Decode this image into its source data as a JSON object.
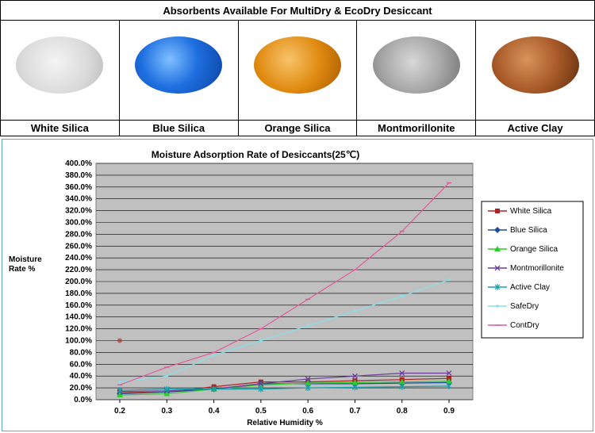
{
  "header": {
    "title": "Absorbents Available For MultiDry & EcoDry Desiccant"
  },
  "absorbents": [
    {
      "name": "White Silica",
      "texture": "white-silica-beads"
    },
    {
      "name": "Blue Silica",
      "texture": "blue-silica-beads"
    },
    {
      "name": "Orange Silica",
      "texture": "orange-silica-beads"
    },
    {
      "name": "Montmorillonite",
      "texture": "montmorillonite-granules"
    },
    {
      "name": "Active Clay",
      "texture": "active-clay-balls"
    }
  ],
  "chart_data": {
    "type": "line",
    "title": "Moisture Adsorption Rate of Desiccants(25℃)",
    "xlabel": "Relative Humidity %",
    "ylabel_lines": [
      "Moisture",
      "Rate %"
    ],
    "x": [
      0.2,
      0.3,
      0.4,
      0.5,
      0.6,
      0.7,
      0.8,
      0.9
    ],
    "x_tick_labels": [
      "0.2",
      "0.3",
      "0.4",
      "0.5",
      "0.6",
      "0.7",
      "0.8",
      "0.9"
    ],
    "ylim": [
      0,
      400
    ],
    "y_ticks": [
      0,
      20,
      40,
      60,
      80,
      100,
      120,
      140,
      160,
      180,
      200,
      220,
      240,
      260,
      280,
      300,
      320,
      340,
      360,
      380,
      400
    ],
    "y_tick_labels": [
      "0.0%",
      "20.0%",
      "40.0%",
      "60.0%",
      "80.0%",
      "100.0%",
      "120.0%",
      "140.0%",
      "160.0%",
      "180.0%",
      "200.0%",
      "220.0%",
      "240.0%",
      "260.0%",
      "280.0%",
      "300.0%",
      "320.0%",
      "340.0%",
      "360.0%",
      "380.0%",
      "400.0%"
    ],
    "grid": "horizontal",
    "plot_background": "#c0c0c0",
    "legend_position": "right",
    "series": [
      {
        "name": "White Silica",
        "color": "#b22222",
        "marker": "square",
        "values": [
          12,
          13,
          22,
          30,
          30,
          32,
          34,
          36
        ]
      },
      {
        "name": "Blue Silica",
        "color": "#1f4e9a",
        "marker": "diamond",
        "values": [
          10,
          13,
          18,
          27,
          27,
          27,
          28,
          29
        ]
      },
      {
        "name": "Orange Silica",
        "color": "#2ecc2e",
        "marker": "triangle",
        "values": [
          8,
          10,
          18,
          25,
          28,
          29,
          30,
          31
        ]
      },
      {
        "name": "Montmorillonite",
        "color": "#6a3d9a",
        "marker": "x",
        "values": [
          14,
          15,
          18,
          27,
          35,
          40,
          45,
          45
        ]
      },
      {
        "name": "Active Clay",
        "color": "#1aa0a8",
        "marker": "star",
        "values": [
          16,
          18,
          18,
          18,
          20,
          21,
          22,
          23
        ]
      },
      {
        "name": "SafeDry",
        "color": "#88e0e8",
        "marker": "dot",
        "values": [
          30,
          40,
          75,
          100,
          125,
          150,
          175,
          203
        ]
      },
      {
        "name": "ContDry",
        "color": "#e05a9a",
        "marker": "dash",
        "values": [
          25,
          55,
          80,
          120,
          170,
          220,
          285,
          367
        ]
      }
    ],
    "annotations": [
      {
        "type": "point",
        "x": 0.2,
        "y": 100,
        "color": "#b22222"
      }
    ]
  }
}
